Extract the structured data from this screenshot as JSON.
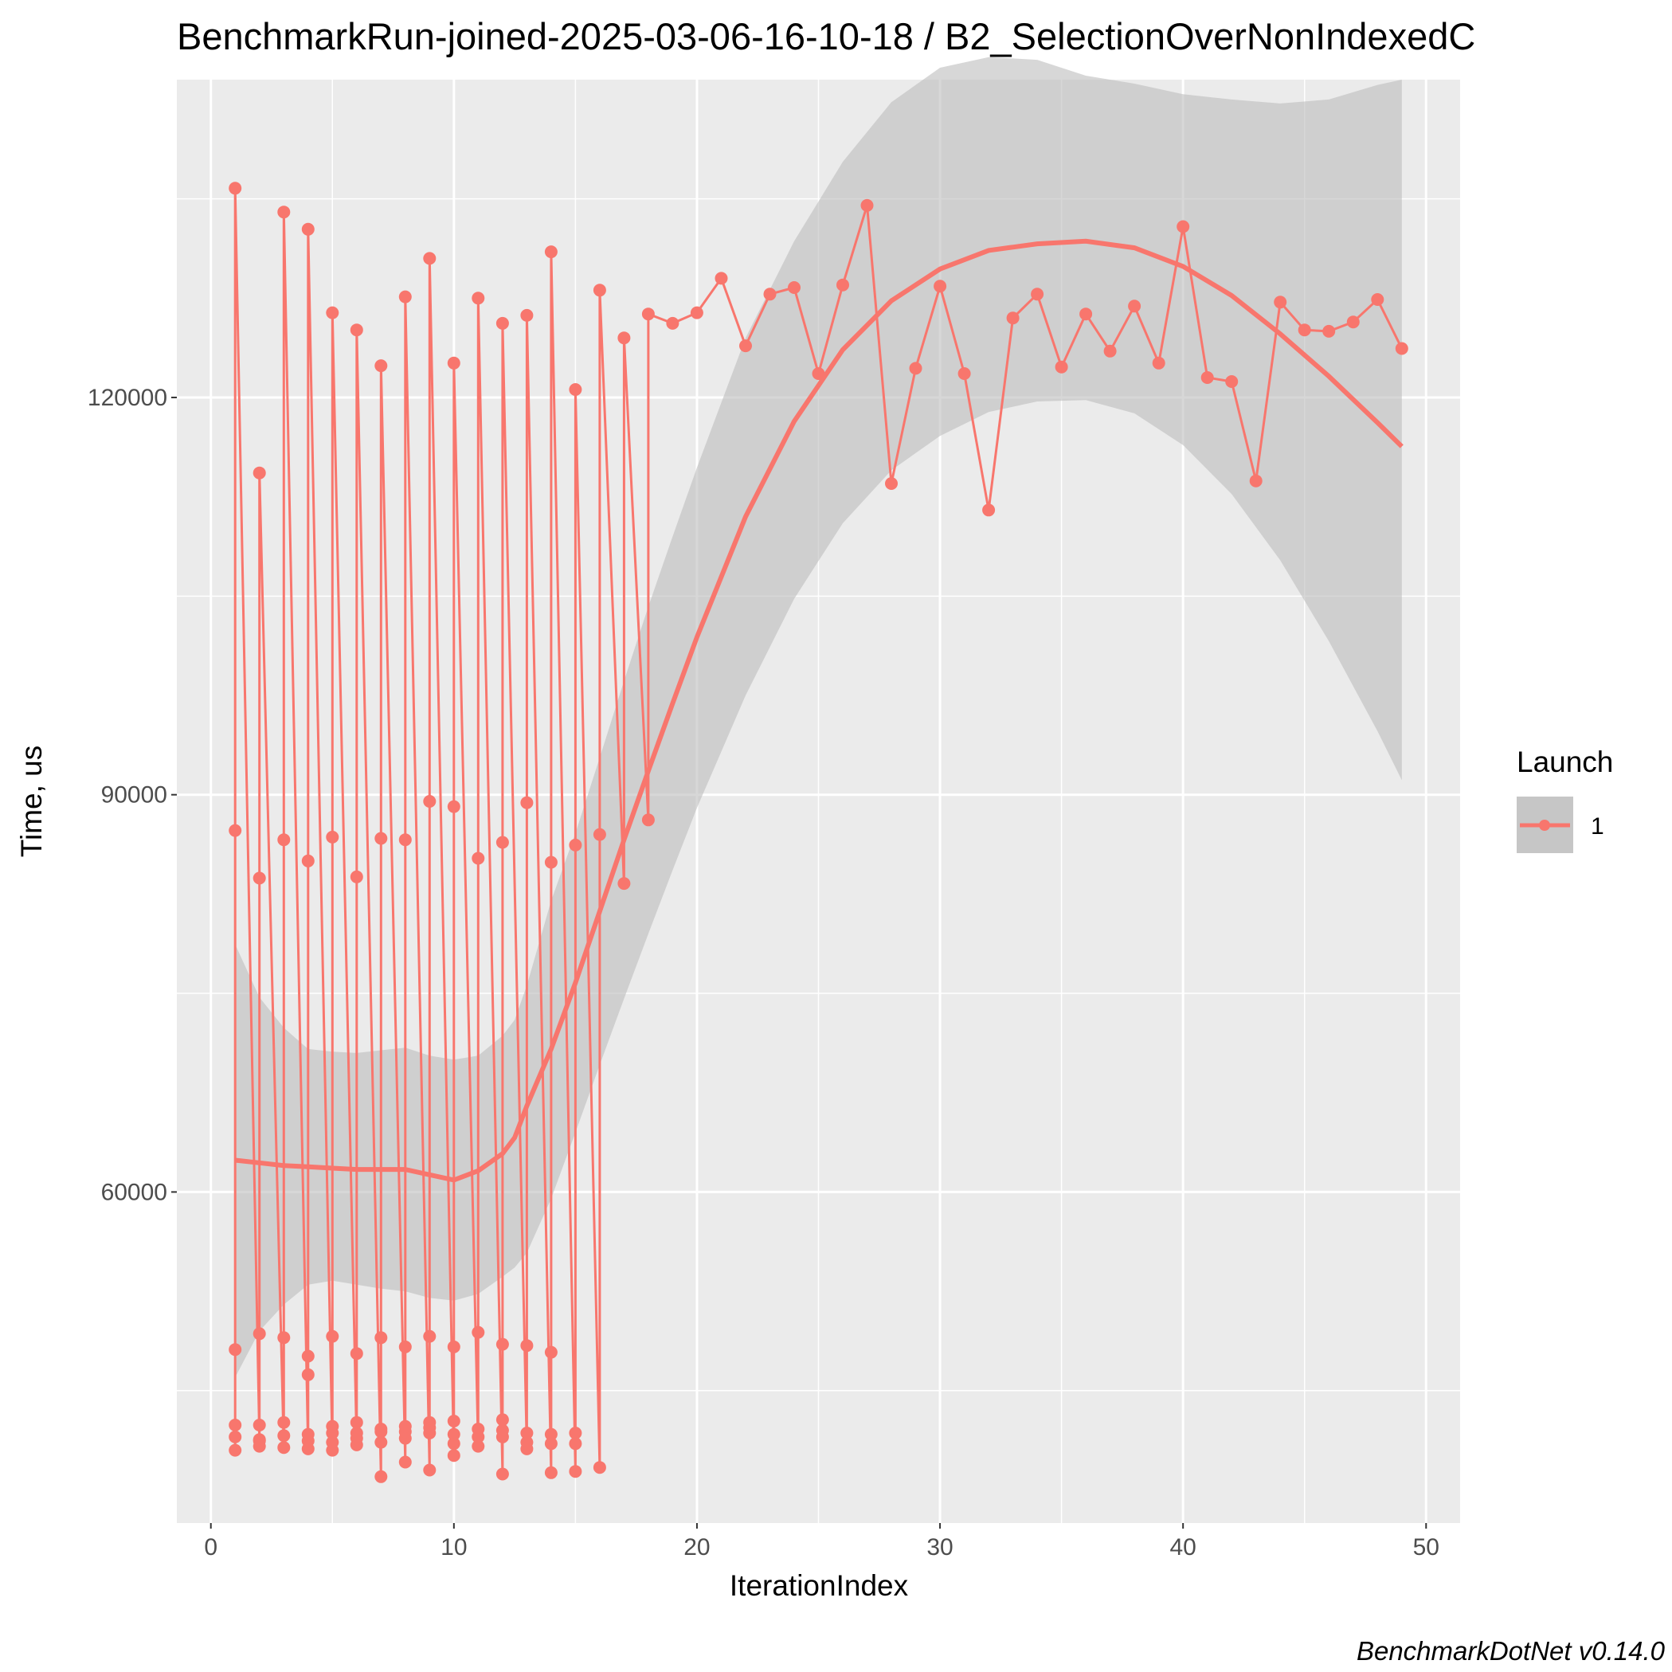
{
  "chart_data": {
    "type": "line",
    "title": "BenchmarkRun-joined-2025-03-06-16-10-18 / B2_SelectionOverNonIndexedC",
    "xlabel": "IterationIndex",
    "ylabel": "Time, us",
    "xlim": [
      -1.4,
      51.4
    ],
    "ylim": [
      35000,
      144000
    ],
    "x_ticks": [
      0,
      10,
      20,
      30,
      40,
      50
    ],
    "y_ticks": [
      60000,
      90000,
      120000
    ],
    "grid": true,
    "background": "#ebebeb",
    "legend": {
      "title": "Launch",
      "position": "right",
      "entries": [
        "1"
      ]
    },
    "caption": "BenchmarkDotNet v0.14.0",
    "series": [
      {
        "name": "1",
        "color": "#f8766d",
        "points": [
          [
            1,
            40500
          ],
          [
            1,
            41500
          ],
          [
            1,
            42400
          ],
          [
            1,
            48100
          ],
          [
            1,
            87300
          ],
          [
            1,
            135800
          ],
          [
            2,
            41300
          ],
          [
            2,
            40800
          ],
          [
            2,
            41200
          ],
          [
            2,
            42400
          ],
          [
            2,
            49300
          ],
          [
            2,
            83700
          ],
          [
            2,
            114300
          ],
          [
            3,
            40700
          ],
          [
            3,
            41600
          ],
          [
            3,
            42600
          ],
          [
            3,
            49000
          ],
          [
            3,
            86600
          ],
          [
            3,
            134000
          ],
          [
            4,
            40600
          ],
          [
            4,
            41200
          ],
          [
            4,
            41700
          ],
          [
            4,
            46200
          ],
          [
            4,
            47600
          ],
          [
            4,
            85000
          ],
          [
            4,
            132700
          ],
          [
            5,
            40500
          ],
          [
            5,
            41100
          ],
          [
            5,
            41800
          ],
          [
            5,
            42300
          ],
          [
            5,
            49100
          ],
          [
            5,
            86800
          ],
          [
            5,
            126400
          ],
          [
            6,
            40900
          ],
          [
            6,
            41400
          ],
          [
            6,
            41800
          ],
          [
            6,
            42600
          ],
          [
            6,
            47800
          ],
          [
            6,
            83800
          ],
          [
            6,
            125100
          ],
          [
            7,
            38500
          ],
          [
            7,
            41100
          ],
          [
            7,
            41900
          ],
          [
            7,
            42100
          ],
          [
            7,
            49000
          ],
          [
            7,
            86700
          ],
          [
            7,
            122400
          ],
          [
            8,
            39600
          ],
          [
            8,
            41400
          ],
          [
            8,
            41900
          ],
          [
            8,
            42300
          ],
          [
            8,
            48300
          ],
          [
            8,
            86600
          ],
          [
            8,
            127600
          ],
          [
            9,
            39000
          ],
          [
            9,
            41800
          ],
          [
            9,
            42200
          ],
          [
            9,
            42600
          ],
          [
            9,
            49100
          ],
          [
            9,
            89500
          ],
          [
            9,
            130500
          ],
          [
            10,
            40100
          ],
          [
            10,
            41000
          ],
          [
            10,
            41700
          ],
          [
            10,
            42700
          ],
          [
            10,
            48300
          ],
          [
            10,
            89100
          ],
          [
            10,
            122600
          ],
          [
            11,
            40800
          ],
          [
            11,
            41500
          ],
          [
            11,
            42100
          ],
          [
            11,
            49400
          ],
          [
            11,
            85200
          ],
          [
            11,
            127500
          ],
          [
            12,
            38700
          ],
          [
            12,
            41500
          ],
          [
            12,
            42000
          ],
          [
            12,
            42800
          ],
          [
            12,
            48500
          ],
          [
            12,
            86400
          ],
          [
            12,
            125600
          ],
          [
            13,
            40600
          ],
          [
            13,
            41100
          ],
          [
            13,
            41800
          ],
          [
            13,
            48400
          ],
          [
            13,
            89400
          ],
          [
            13,
            126200
          ],
          [
            14,
            38800
          ],
          [
            14,
            41000
          ],
          [
            14,
            41700
          ],
          [
            14,
            47900
          ],
          [
            14,
            84900
          ],
          [
            14,
            131000
          ],
          [
            15,
            38900
          ],
          [
            15,
            41000
          ],
          [
            15,
            41800
          ],
          [
            15,
            86200
          ],
          [
            15,
            120600
          ],
          [
            16,
            39200
          ],
          [
            16,
            87000
          ],
          [
            16,
            128100
          ],
          [
            17,
            83300
          ],
          [
            17,
            124500
          ],
          [
            18,
            88100
          ],
          [
            18,
            126300
          ],
          [
            19,
            125600
          ],
          [
            20,
            126400
          ],
          [
            21,
            129000
          ],
          [
            22,
            123900
          ],
          [
            23,
            127800
          ],
          [
            24,
            128300
          ],
          [
            25,
            121800
          ],
          [
            26,
            128500
          ],
          [
            27,
            134500
          ],
          [
            28,
            113500
          ],
          [
            29,
            122200
          ],
          [
            30,
            128400
          ],
          [
            31,
            121800
          ],
          [
            32,
            111500
          ],
          [
            33,
            126000
          ],
          [
            34,
            127800
          ],
          [
            35,
            122300
          ],
          [
            36,
            126300
          ],
          [
            37,
            123500
          ],
          [
            38,
            126900
          ],
          [
            39,
            122600
          ],
          [
            40,
            132900
          ],
          [
            41,
            121500
          ],
          [
            42,
            121200
          ],
          [
            43,
            113700
          ],
          [
            44,
            127200
          ],
          [
            45,
            125100
          ],
          [
            46,
            125000
          ],
          [
            47,
            125700
          ],
          [
            48,
            127400
          ],
          [
            49,
            123700
          ]
        ]
      }
    ],
    "smooth": {
      "x": [
        1,
        2,
        3,
        4,
        5,
        6,
        7,
        8,
        9,
        10,
        11,
        12,
        12.5,
        13,
        14,
        15,
        16,
        17,
        18,
        19,
        20,
        22,
        24,
        26,
        28,
        30,
        32,
        34,
        36,
        38,
        40,
        42,
        44,
        46,
        48,
        49
      ],
      "y": [
        62400,
        62200,
        62000,
        61900,
        61800,
        61700,
        61700,
        61700,
        61300,
        60900,
        61600,
        62900,
        64100,
        66500,
        70800,
        75800,
        81200,
        86600,
        91800,
        96900,
        101900,
        111000,
        118200,
        123600,
        127300,
        129700,
        131100,
        131600,
        131800,
        131300,
        129900,
        127700,
        124800,
        121600,
        118100,
        116300
      ],
      "ci_lower": [
        46000,
        49500,
        51500,
        53000,
        53300,
        53000,
        52700,
        52500,
        52000,
        51800,
        52300,
        53600,
        54300,
        55400,
        59500,
        64500,
        69600,
        74600,
        79500,
        84300,
        89000,
        97500,
        104800,
        110500,
        114500,
        117100,
        118900,
        119700,
        119800,
        118800,
        116400,
        112700,
        107700,
        101600,
        94800,
        91100
      ],
      "ci_upper": [
        78700,
        74700,
        72400,
        70800,
        70600,
        70500,
        70700,
        70900,
        70300,
        70000,
        70300,
        71800,
        73000,
        75600,
        82000,
        87100,
        92800,
        98600,
        104200,
        109500,
        114700,
        124500,
        131800,
        137800,
        142300,
        144900,
        145700,
        145500,
        144300,
        143700,
        142900,
        142500,
        142200,
        142500,
        143600,
        144000
      ]
    }
  }
}
